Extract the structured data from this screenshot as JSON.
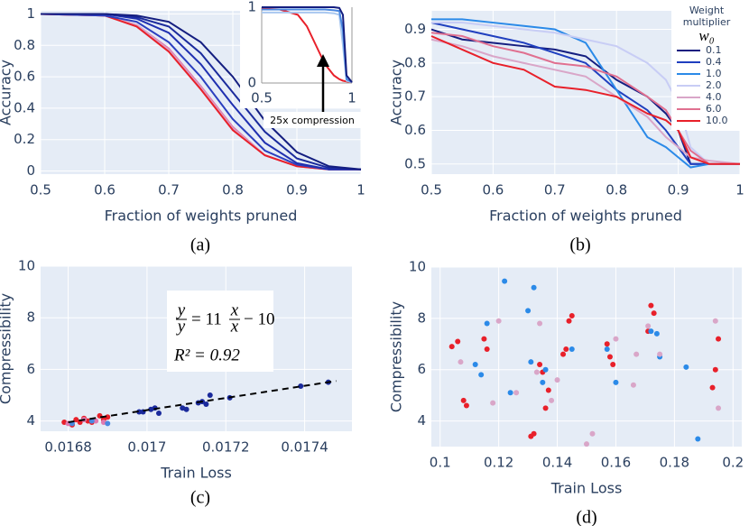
{
  "chart_data": [
    {
      "type": "line",
      "caption": "(a)",
      "xlabel": "Fraction of weights pruned",
      "ylabel": "Accuracy",
      "xlim": [
        0.5,
        1
      ],
      "ylim": [
        -0.02,
        1.02
      ],
      "xticks": [
        0.5,
        0.6,
        0.7,
        0.8,
        0.9,
        1
      ],
      "yticks": [
        0,
        0.2,
        0.4,
        0.6,
        0.8,
        1
      ],
      "grid": true,
      "x": [
        0.5,
        0.6,
        0.65,
        0.7,
        0.75,
        0.8,
        0.85,
        0.9,
        0.95,
        1.0
      ],
      "series": [
        {
          "color": "#e07ab0",
          "values": [
            1,
            0.99,
            0.93,
            0.78,
            0.54,
            0.28,
            0.1,
            0.03,
            0.01,
            0.01
          ]
        },
        {
          "color": "#d9a6c8",
          "values": [
            1,
            0.99,
            0.93,
            0.77,
            0.53,
            0.27,
            0.1,
            0.03,
            0.01,
            0.01
          ]
        },
        {
          "color": "#e8202a",
          "values": [
            1,
            0.99,
            0.92,
            0.76,
            0.52,
            0.26,
            0.1,
            0.03,
            0.01,
            0.01
          ]
        },
        {
          "color": "#2b3fbf",
          "values": [
            1,
            0.99,
            0.95,
            0.82,
            0.6,
            0.33,
            0.13,
            0.04,
            0.01,
            0.01
          ]
        },
        {
          "color": "#1f2fb0",
          "values": [
            1,
            1,
            0.97,
            0.88,
            0.68,
            0.42,
            0.18,
            0.05,
            0.01,
            0.01
          ]
        },
        {
          "color": "#1a2a9c",
          "values": [
            1,
            1,
            0.98,
            0.92,
            0.75,
            0.5,
            0.25,
            0.08,
            0.02,
            0.01
          ]
        },
        {
          "color": "#141e80",
          "values": [
            1,
            1,
            0.99,
            0.95,
            0.82,
            0.6,
            0.32,
            0.12,
            0.03,
            0.01
          ]
        }
      ],
      "inset": {
        "type": "line",
        "xlim": [
          0.5,
          1
        ],
        "ylim": [
          0,
          1
        ],
        "xticks": [
          0.5,
          1
        ],
        "yticks": [
          0,
          1
        ],
        "x": [
          0.5,
          0.6,
          0.7,
          0.75,
          0.8,
          0.85,
          0.9,
          0.93,
          0.95,
          0.97,
          1.0
        ],
        "series": [
          {
            "color": "#e8202a",
            "values": [
              0.98,
              0.97,
              0.9,
              0.75,
              0.5,
              0.25,
              0.1,
              0.05,
              0.03,
              0.02,
              0.01
            ]
          },
          {
            "color": "#a9c8f0",
            "values": [
              0.93,
              0.93,
              0.93,
              0.93,
              0.93,
              0.93,
              0.92,
              0.9,
              0.5,
              0.03,
              0.01
            ]
          },
          {
            "color": "#4a88e0",
            "values": [
              0.97,
              0.97,
              0.97,
              0.97,
              0.97,
              0.97,
              0.96,
              0.95,
              0.7,
              0.05,
              0.01
            ]
          },
          {
            "color": "#141e80",
            "values": [
              1,
              1,
              1,
              1,
              1,
              1,
              1,
              0.99,
              0.9,
              0.1,
              0.01
            ]
          }
        ],
        "annotation": "25x compression"
      }
    },
    {
      "type": "line",
      "caption": "(b)",
      "xlabel": "Fraction of weights pruned",
      "ylabel": "Accuracy",
      "xlim": [
        0.5,
        1
      ],
      "ylim": [
        0.47,
        0.955
      ],
      "xticks": [
        0.5,
        0.6,
        0.7,
        0.8,
        0.9,
        1
      ],
      "yticks": [
        0.5,
        0.6,
        0.7,
        0.8,
        0.9
      ],
      "grid": true,
      "legend": "upper right",
      "legend_title": "Weight multiplier",
      "legend_symbol": "w₀",
      "x": [
        0.5,
        0.55,
        0.6,
        0.65,
        0.7,
        0.75,
        0.8,
        0.85,
        0.88,
        0.9,
        0.92,
        0.95,
        1.0
      ],
      "series": [
        {
          "name": "0.1",
          "color": "#141e80",
          "values": [
            0.9,
            0.87,
            0.86,
            0.85,
            0.84,
            0.82,
            0.75,
            0.7,
            0.65,
            0.6,
            0.5,
            0.5,
            0.5
          ]
        },
        {
          "name": "0.4",
          "color": "#1f3fbf",
          "values": [
            0.92,
            0.9,
            0.88,
            0.86,
            0.83,
            0.8,
            0.72,
            0.66,
            0.6,
            0.55,
            0.5,
            0.5,
            0.5
          ]
        },
        {
          "name": "1.0",
          "color": "#2b8ae8",
          "values": [
            0.93,
            0.93,
            0.92,
            0.91,
            0.9,
            0.86,
            0.72,
            0.58,
            0.55,
            0.52,
            0.49,
            0.5,
            0.5
          ]
        },
        {
          "name": "2.0",
          "color": "#c8cdf5",
          "values": [
            0.92,
            0.92,
            0.91,
            0.9,
            0.89,
            0.87,
            0.85,
            0.8,
            0.75,
            0.68,
            0.55,
            0.5,
            0.5
          ]
        },
        {
          "name": "4.0",
          "color": "#d9a6c8",
          "values": [
            0.87,
            0.85,
            0.82,
            0.8,
            0.78,
            0.76,
            0.7,
            0.64,
            0.58,
            0.55,
            0.52,
            0.51,
            0.5
          ]
        },
        {
          "name": "6.0",
          "color": "#e07090",
          "values": [
            0.89,
            0.88,
            0.85,
            0.83,
            0.8,
            0.79,
            0.76,
            0.7,
            0.66,
            0.6,
            0.54,
            0.5,
            0.5
          ]
        },
        {
          "name": "10.0",
          "color": "#e8202a",
          "values": [
            0.88,
            0.84,
            0.8,
            0.78,
            0.73,
            0.72,
            0.7,
            0.65,
            0.63,
            0.6,
            0.52,
            0.5,
            0.5
          ]
        }
      ]
    },
    {
      "type": "scatter",
      "caption": "(c)",
      "xlabel": "Train Loss",
      "ylabel": "Compressibility",
      "xlim": [
        0.01673,
        0.01752
      ],
      "ylim": [
        3.6,
        10
      ],
      "xticks": [
        0.0168,
        0.017,
        0.0172,
        0.0174
      ],
      "yticks": [
        4,
        6,
        8,
        10
      ],
      "grid": true,
      "series": [
        {
          "color": "#e8202a",
          "x": [
            0.01679,
            0.01681,
            0.01682,
            0.01683,
            0.01684,
            0.01685,
            0.01686,
            0.01688,
            0.01689,
            0.0169
          ],
          "values": [
            3.95,
            3.85,
            4.05,
            3.95,
            4.1,
            4.0,
            3.95,
            4.2,
            4.05,
            4.15
          ]
        },
        {
          "color": "#e07ab0",
          "x": [
            0.0168,
            0.01684,
            0.01687,
            0.01689
          ],
          "values": [
            3.9,
            4.05,
            4.0,
            3.95
          ]
        },
        {
          "color": "#4a88e0",
          "x": [
            0.01681,
            0.01686,
            0.0169
          ],
          "values": [
            3.9,
            4.0,
            3.9
          ]
        },
        {
          "color": "#1a2a9c",
          "x": [
            0.01698,
            0.01699,
            0.01701,
            0.01702,
            0.01703,
            0.01709,
            0.0171,
            0.01713,
            0.01714,
            0.01715,
            0.01716,
            0.01721,
            0.01739,
            0.01746
          ],
          "values": [
            4.35,
            4.35,
            4.45,
            4.5,
            4.3,
            4.5,
            4.45,
            4.7,
            4.75,
            4.65,
            5.0,
            4.9,
            5.35,
            5.5
          ]
        }
      ],
      "fit": {
        "x": [
          0.0168,
          0.01748
        ],
        "values": [
          3.95,
          5.55
        ]
      },
      "annotation": {
        "lhs_num": "y",
        "lhs_den": "y",
        "coef": "= 11",
        "rhs_num": "x",
        "rhs_den": "x",
        "offset": "− 10",
        "r2": "R² = 0.92"
      }
    },
    {
      "type": "scatter",
      "caption": "(d)",
      "xlabel": "Train Loss",
      "ylabel": "Compressibility",
      "xlim": [
        0.097,
        0.203
      ],
      "ylim": [
        3,
        10
      ],
      "xticks": [
        0.1,
        0.12,
        0.14,
        0.16,
        0.18,
        0.2
      ],
      "yticks": [
        4,
        6,
        8,
        10
      ],
      "grid": true,
      "series": [
        {
          "color": "#e8202a",
          "x": [
            0.104,
            0.106,
            0.108,
            0.109,
            0.115,
            0.116,
            0.131,
            0.132,
            0.134,
            0.135,
            0.136,
            0.137,
            0.142,
            0.143,
            0.144,
            0.145,
            0.157,
            0.158,
            0.159,
            0.171,
            0.172,
            0.173,
            0.193,
            0.194,
            0.195
          ],
          "values": [
            6.9,
            7.1,
            4.8,
            4.6,
            7.2,
            6.8,
            3.4,
            3.5,
            6.2,
            5.9,
            4.5,
            5.2,
            6.6,
            6.8,
            7.9,
            8.1,
            7.0,
            6.5,
            6.2,
            7.5,
            8.5,
            8.2,
            5.3,
            6.0,
            7.2
          ]
        },
        {
          "color": "#2b8ae8",
          "x": [
            0.112,
            0.114,
            0.116,
            0.122,
            0.124,
            0.13,
            0.131,
            0.132,
            0.135,
            0.136,
            0.145,
            0.157,
            0.16,
            0.172,
            0.174,
            0.175,
            0.184,
            0.188
          ],
          "values": [
            6.2,
            5.8,
            7.8,
            9.45,
            5.1,
            8.3,
            6.3,
            9.2,
            5.5,
            6.0,
            6.8,
            6.8,
            5.5,
            7.5,
            7.4,
            6.5,
            6.1,
            3.3
          ]
        },
        {
          "color": "#d9a6c8",
          "x": [
            0.107,
            0.118,
            0.12,
            0.126,
            0.133,
            0.134,
            0.138,
            0.14,
            0.15,
            0.152,
            0.16,
            0.166,
            0.167,
            0.171,
            0.175,
            0.194,
            0.195
          ],
          "values": [
            6.3,
            4.7,
            7.9,
            5.1,
            5.9,
            7.8,
            4.8,
            5.6,
            3.1,
            3.5,
            7.2,
            5.4,
            6.6,
            7.7,
            6.6,
            7.9,
            4.5
          ]
        }
      ]
    }
  ]
}
